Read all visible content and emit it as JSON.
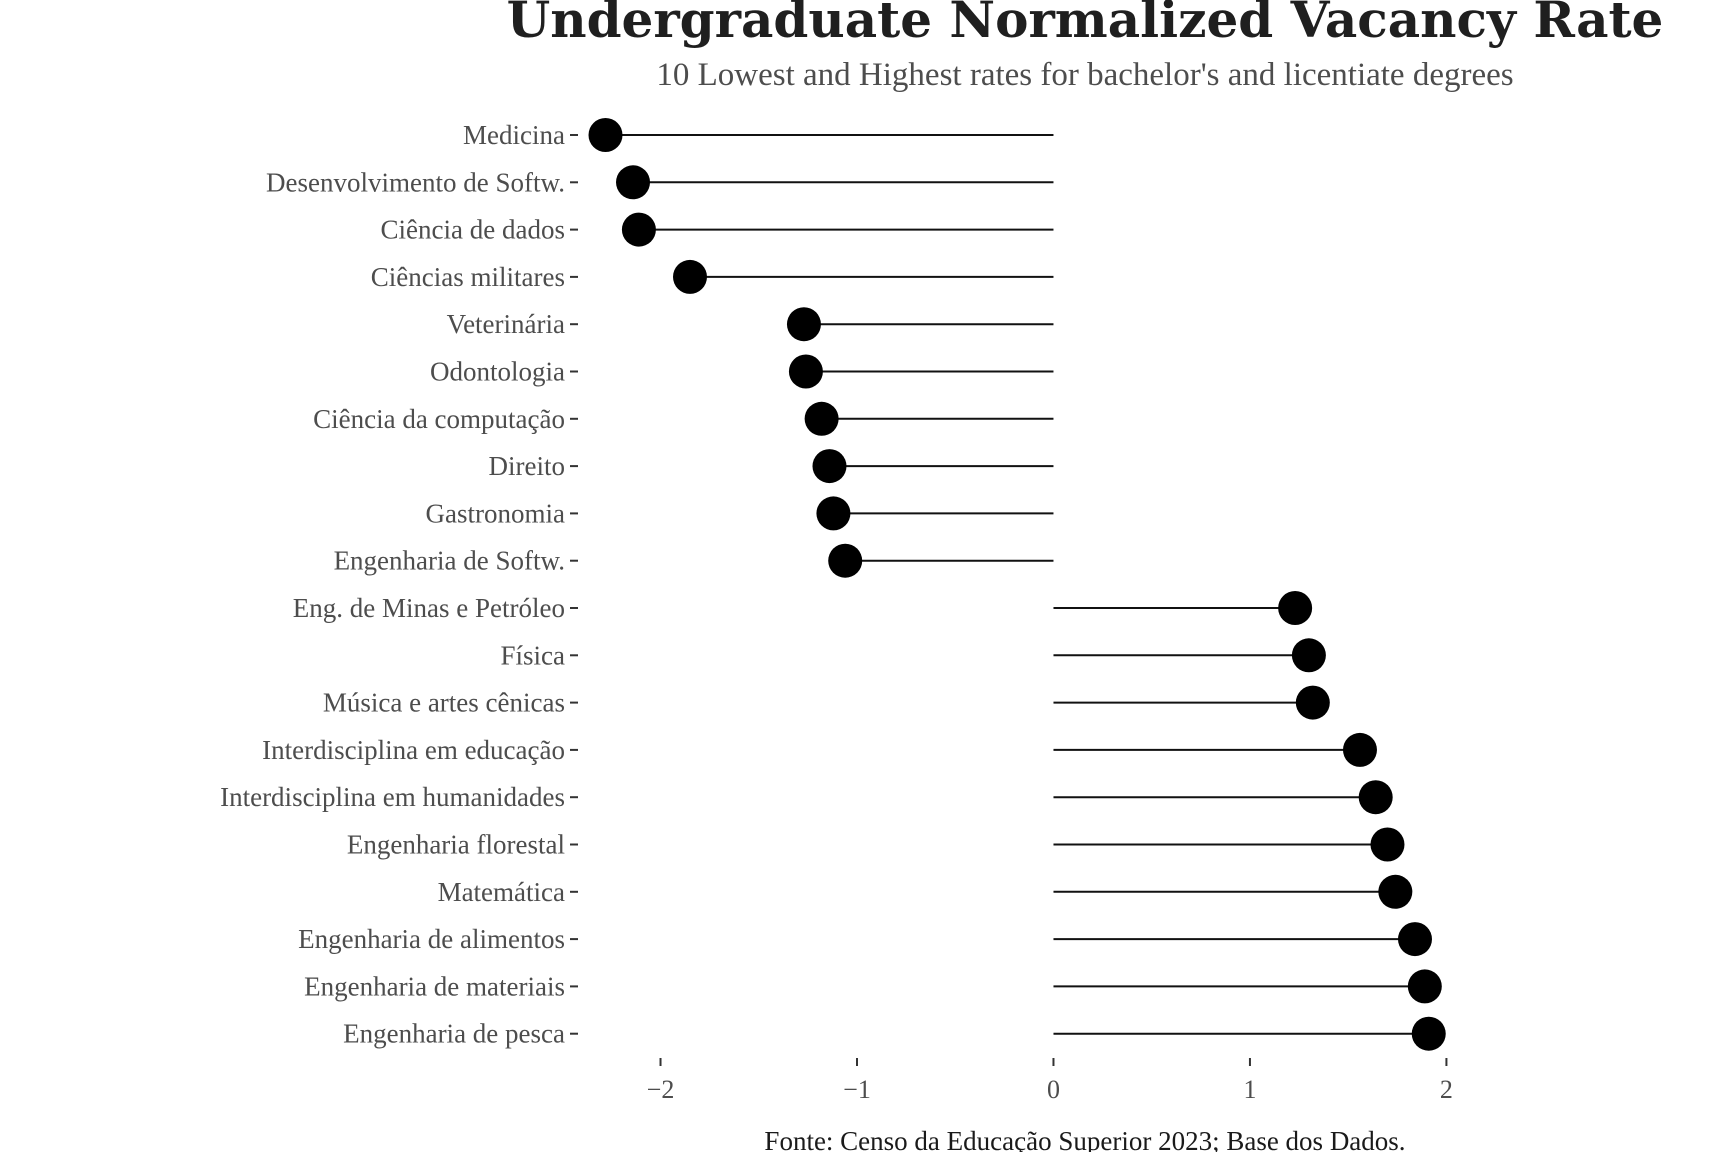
{
  "chart_data": {
    "type": "lollipop",
    "title": "Undergraduate Normalized Vacancy Rate",
    "subtitle": "10 Lowest and Highest rates for bachelor's and licentiate degrees",
    "caption": "Fonte: Censo da Educação Superior 2023; Base dos Dados.",
    "xlabel": "",
    "ylabel": "",
    "xlim": [
      -2.42,
      2.12
    ],
    "x_ticks": [
      -2,
      -1,
      0,
      1,
      2
    ],
    "x_tick_labels": [
      "−2",
      "−1",
      "0",
      "1",
      "2"
    ],
    "grid": false,
    "baseline": 0,
    "categories": [
      "Medicina",
      "Desenvolvimento de Softw.",
      "Ciência de dados",
      "Ciências militares",
      "Veterinária",
      "Odontologia",
      "Ciência da computação",
      "Direito",
      "Gastronomia",
      "Engenharia de Softw.",
      "Eng. de Minas e Petróleo",
      "Física",
      "Música e artes cênicas",
      "Interdisciplina em educação",
      "Interdisciplina em humanidades",
      "Engenharia florestal",
      "Matemática",
      "Engenharia de alimentos",
      "Engenharia de materiais",
      "Engenharia de pesca"
    ],
    "values": [
      -2.28,
      -2.14,
      -2.11,
      -1.85,
      -1.27,
      -1.26,
      -1.18,
      -1.14,
      -1.12,
      -1.06,
      1.23,
      1.3,
      1.32,
      1.56,
      1.64,
      1.7,
      1.74,
      1.84,
      1.89,
      1.91
    ],
    "colors": {
      "dot": "#000000",
      "stem": "#111111",
      "text": "#4d4d4d"
    }
  }
}
